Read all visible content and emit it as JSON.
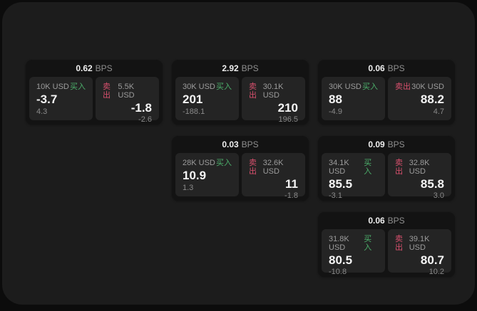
{
  "labels": {
    "buy": "买入",
    "sell": "卖出",
    "bps_unit": "BPS"
  },
  "colors": {
    "buy_green": "#4caf6b",
    "sell_red": "#d8506d",
    "surface": "#1c1c1c",
    "card": "#131313",
    "cell": "#242424"
  },
  "cards": [
    {
      "bps": "0.62",
      "buy": {
        "amount": "10K USD",
        "value": "-3.7",
        "sub": "4.3"
      },
      "sell": {
        "amount": "5.5K USD",
        "value": "-1.8",
        "sub": "-2.6"
      }
    },
    {
      "bps": "2.92",
      "buy": {
        "amount": "30K USD",
        "value": "201",
        "sub": "-188.1"
      },
      "sell": {
        "amount": "30.1K USD",
        "value": "210",
        "sub": "196.5"
      }
    },
    {
      "bps": "0.06",
      "buy": {
        "amount": "30K USD",
        "value": "88",
        "sub": "-4.9"
      },
      "sell": {
        "amount": "30K USD",
        "value": "88.2",
        "sub": "4.7"
      }
    },
    {
      "bps": "0.03",
      "buy": {
        "amount": "28K USD",
        "value": "10.9",
        "sub": "1.3"
      },
      "sell": {
        "amount": "32.6K USD",
        "value": "11",
        "sub": "-1.8"
      }
    },
    {
      "bps": "0.09",
      "buy": {
        "amount": "34.1K USD",
        "value": "85.5",
        "sub": "-3.1"
      },
      "sell": {
        "amount": "32.8K USD",
        "value": "85.8",
        "sub": "3.0"
      }
    },
    {
      "bps": "0.06",
      "buy": {
        "amount": "31.8K USD",
        "value": "80.5",
        "sub": "-10.8"
      },
      "sell": {
        "amount": "39.1K USD",
        "value": "80.7",
        "sub": "10.2"
      }
    }
  ]
}
